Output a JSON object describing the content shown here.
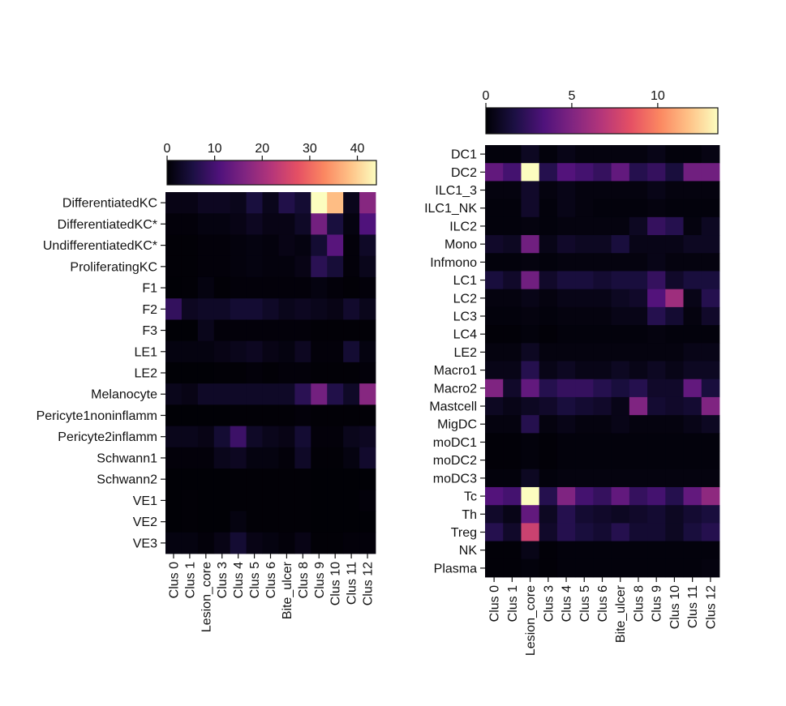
{
  "chart_data": [
    {
      "type": "heatmap",
      "name": "left",
      "colormap": "magma",
      "colorbar": {
        "vmin": 0,
        "vmax": 44,
        "ticks": [
          0,
          10,
          20,
          30,
          40
        ]
      },
      "columns": [
        "Clus 0",
        "Clus 1",
        "Lesion_core",
        "Clus 3",
        "Clus 4",
        "Clus 5",
        "Clus 6",
        "Bite_ulcer",
        "Clus 8",
        "Clus 9",
        "Clus 10",
        "Clus 11",
        "Clus 12"
      ],
      "rows": [
        "DifferentiatedKC",
        "DifferentiatedKC*",
        "UndifferentiatedKC*",
        "ProliferatingKC",
        "F1",
        "F2",
        "F3",
        "LE1",
        "LE2",
        "Melanocyte",
        "Pericyte1noninflamm",
        "Pericyte2inflamm",
        "Schwann1",
        "Schwann2",
        "VE1",
        "VE2",
        "VE3"
      ],
      "values": [
        [
          1.5,
          1.5,
          2.5,
          2.5,
          2.0,
          5.0,
          2.0,
          6.0,
          4.0,
          44,
          38,
          2.0,
          17
        ],
        [
          0.5,
          0.5,
          1.0,
          1.0,
          1.5,
          2.5,
          1.5,
          1.5,
          3.0,
          15,
          5.0,
          1.0,
          11
        ],
        [
          0.3,
          0.3,
          0.5,
          0.5,
          0.8,
          1.0,
          0.8,
          1.5,
          1.0,
          4.0,
          12,
          0.5,
          3.0
        ],
        [
          0.3,
          0.3,
          0.5,
          0.5,
          0.8,
          1.0,
          0.8,
          0.8,
          1.5,
          7.0,
          4.5,
          0.5,
          2.0
        ],
        [
          0.2,
          0.3,
          1.0,
          0.3,
          0.5,
          0.5,
          0.5,
          0.5,
          0.5,
          1.0,
          0.5,
          0.3,
          0.5
        ],
        [
          8.0,
          2.5,
          3.0,
          3.0,
          4.0,
          4.0,
          3.0,
          2.0,
          2.5,
          2.0,
          1.5,
          3.5,
          2.0
        ],
        [
          0.2,
          0.2,
          2.0,
          0.5,
          0.5,
          0.5,
          0.5,
          0.5,
          0.5,
          0.3,
          0.3,
          0.3,
          0.3
        ],
        [
          1.0,
          1.0,
          1.0,
          1.5,
          2.0,
          2.5,
          1.5,
          1.0,
          2.5,
          0.5,
          0.5,
          4.0,
          1.0
        ],
        [
          0.2,
          0.2,
          0.2,
          0.3,
          0.3,
          0.5,
          0.3,
          0.5,
          0.5,
          0.3,
          0.3,
          0.3,
          0.5
        ],
        [
          2.0,
          1.5,
          3.0,
          3.0,
          3.0,
          3.0,
          3.0,
          3.0,
          7.0,
          15,
          6.0,
          3.0,
          17
        ],
        [
          0.2,
          0.2,
          0.2,
          0.2,
          0.3,
          0.3,
          0.3,
          0.3,
          0.5,
          0.3,
          0.3,
          0.3,
          0.3
        ],
        [
          2.0,
          2.0,
          1.5,
          4.0,
          9.0,
          3.0,
          2.0,
          1.5,
          4.0,
          0.5,
          0.5,
          2.0,
          2.5
        ],
        [
          0.5,
          0.5,
          0.5,
          2.0,
          2.5,
          1.0,
          1.0,
          0.5,
          3.0,
          0.3,
          0.3,
          1.0,
          3.5
        ],
        [
          0.2,
          0.2,
          0.2,
          0.2,
          0.3,
          0.3,
          0.3,
          0.3,
          0.3,
          0.2,
          0.2,
          0.2,
          0.2
        ],
        [
          0.2,
          0.3,
          0.2,
          0.2,
          0.3,
          0.3,
          0.3,
          0.3,
          0.3,
          0.2,
          0.2,
          0.2,
          0.5
        ],
        [
          0.2,
          0.3,
          0.2,
          0.2,
          1.0,
          0.3,
          0.3,
          0.3,
          0.3,
          0.2,
          0.2,
          0.2,
          0.2
        ],
        [
          1.0,
          1.0,
          0.5,
          1.5,
          4.0,
          1.5,
          1.0,
          0.5,
          1.5,
          0.3,
          0.3,
          0.5,
          0.5
        ]
      ]
    },
    {
      "type": "heatmap",
      "name": "right",
      "colormap": "magma",
      "colorbar": {
        "vmin": 0,
        "vmax": 13.5,
        "ticks": [
          0,
          5,
          10
        ]
      },
      "columns": [
        "Clus 0",
        "Clus 1",
        "Lesion_core",
        "Clus 3",
        "Clus 4",
        "Clus 5",
        "Clus 6",
        "Bite_ulcer",
        "Clus 8",
        "Clus 9",
        "Clus 10",
        "Clus 11",
        "Clus 12"
      ],
      "rows": [
        "DC1",
        "DC2",
        "ILC1_3",
        "ILC1_NK",
        "ILC2",
        "Mono",
        "Infmono",
        "LC1",
        "LC2",
        "LC3",
        "LC4",
        "LE2",
        "Macro1",
        "Macro2",
        "Mastcell",
        "MigDC",
        "moDC1",
        "moDC2",
        "moDC3",
        "Tc",
        "Th",
        "Treg",
        "NK",
        "Plasma"
      ],
      "values": [
        [
          0.2,
          0.2,
          0.8,
          0.2,
          0.5,
          0.3,
          0.3,
          0.3,
          0.3,
          0.5,
          0.2,
          0.2,
          0.4
        ],
        [
          4.0,
          3.0,
          13.5,
          2.0,
          3.5,
          3.0,
          2.5,
          4.0,
          2.0,
          2.5,
          1.5,
          4.5,
          4.5
        ],
        [
          0.3,
          0.3,
          1.0,
          0.3,
          0.5,
          0.3,
          0.3,
          0.3,
          0.3,
          0.5,
          0.3,
          0.3,
          0.3
        ],
        [
          0.2,
          0.2,
          1.0,
          0.2,
          0.5,
          0.3,
          0.2,
          0.2,
          0.2,
          0.3,
          0.2,
          0.2,
          0.2
        ],
        [
          0.2,
          0.2,
          0.3,
          0.2,
          0.3,
          0.3,
          0.3,
          0.3,
          0.8,
          2.5,
          2.0,
          0.3,
          0.8
        ],
        [
          1.0,
          0.8,
          4.5,
          0.5,
          1.0,
          0.8,
          0.8,
          1.5,
          0.5,
          0.5,
          0.5,
          0.8,
          0.8
        ],
        [
          0.2,
          0.2,
          0.3,
          0.2,
          0.3,
          0.3,
          0.3,
          0.3,
          0.3,
          0.5,
          0.3,
          0.3,
          0.3
        ],
        [
          1.5,
          1.0,
          4.5,
          1.0,
          1.5,
          1.5,
          1.2,
          1.5,
          1.5,
          2.5,
          1.0,
          1.5,
          1.5
        ],
        [
          0.3,
          0.3,
          0.5,
          0.3,
          0.5,
          0.5,
          0.5,
          0.8,
          1.0,
          3.5,
          6.0,
          0.5,
          2.0
        ],
        [
          0.2,
          0.2,
          0.3,
          0.2,
          0.3,
          0.3,
          0.3,
          0.5,
          0.5,
          2.0,
          1.2,
          0.3,
          1.0
        ],
        [
          0.1,
          0.1,
          0.2,
          0.1,
          0.2,
          0.2,
          0.2,
          0.2,
          0.2,
          0.3,
          0.2,
          0.2,
          0.2
        ],
        [
          0.3,
          0.3,
          0.8,
          0.3,
          0.3,
          0.3,
          0.3,
          0.3,
          0.3,
          0.3,
          0.3,
          0.5,
          0.5
        ],
        [
          0.5,
          0.5,
          2.0,
          0.5,
          0.8,
          0.5,
          0.5,
          0.8,
          0.5,
          0.8,
          0.5,
          0.8,
          0.8
        ],
        [
          5.0,
          1.0,
          4.0,
          2.0,
          2.5,
          2.5,
          2.0,
          1.5,
          2.0,
          1.0,
          1.0,
          4.0,
          1.5
        ],
        [
          0.8,
          0.5,
          0.8,
          1.0,
          1.5,
          1.2,
          1.0,
          0.5,
          5.0,
          1.2,
          1.0,
          1.2,
          5.0
        ],
        [
          0.3,
          0.3,
          2.0,
          0.3,
          0.5,
          0.3,
          0.3,
          0.5,
          0.3,
          0.3,
          0.3,
          0.5,
          0.8
        ],
        [
          0.1,
          0.1,
          0.2,
          0.1,
          0.2,
          0.2,
          0.2,
          0.2,
          0.2,
          0.2,
          0.2,
          0.2,
          0.2
        ],
        [
          0.1,
          0.1,
          0.2,
          0.1,
          0.2,
          0.2,
          0.2,
          0.2,
          0.2,
          0.2,
          0.2,
          0.2,
          0.2
        ],
        [
          0.2,
          0.2,
          0.8,
          0.2,
          0.3,
          0.3,
          0.3,
          0.3,
          0.3,
          0.3,
          0.3,
          0.3,
          0.3
        ],
        [
          3.5,
          3.0,
          13.5,
          2.0,
          5.0,
          3.0,
          2.5,
          4.0,
          2.5,
          3.0,
          2.0,
          4.0,
          5.5
        ],
        [
          1.0,
          0.5,
          4.0,
          0.8,
          2.0,
          1.2,
          1.0,
          0.8,
          1.0,
          1.2,
          0.8,
          1.2,
          1.5
        ],
        [
          2.0,
          1.0,
          7.5,
          1.0,
          2.0,
          1.5,
          1.2,
          2.0,
          1.2,
          1.2,
          0.8,
          1.5,
          2.0
        ],
        [
          0.1,
          0.1,
          0.5,
          0.1,
          0.2,
          0.2,
          0.2,
          0.2,
          0.2,
          0.2,
          0.2,
          0.2,
          0.2
        ],
        [
          0.1,
          0.1,
          0.2,
          0.1,
          0.2,
          0.2,
          0.2,
          0.2,
          0.2,
          0.2,
          0.2,
          0.2,
          0.3
        ]
      ]
    }
  ]
}
